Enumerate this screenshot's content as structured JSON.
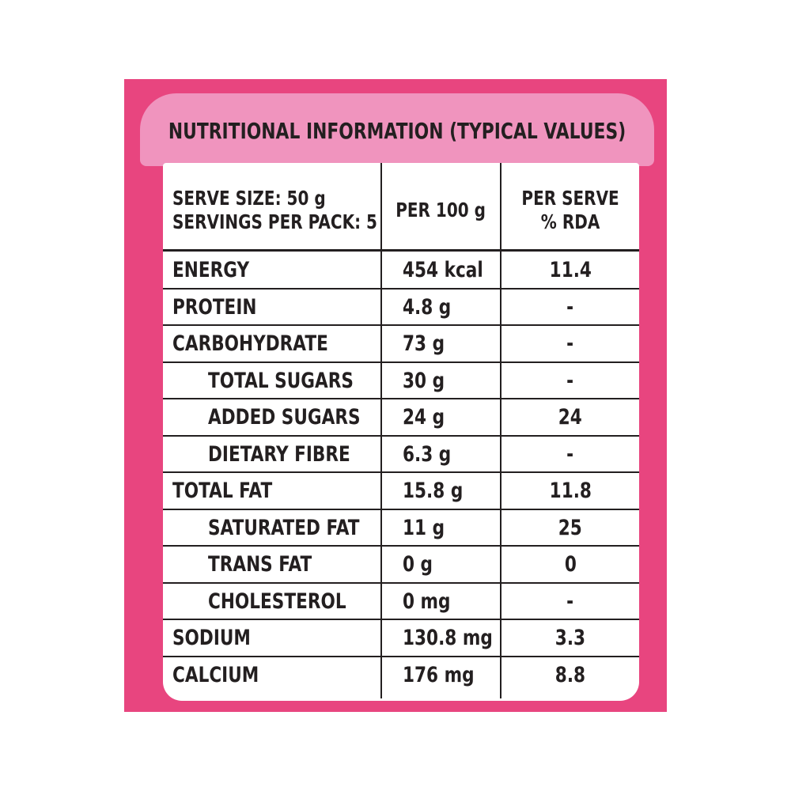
{
  "title": "NUTRITIONAL INFORMATION (TYPICAL VALUES)",
  "header": {
    "serve_line1": "SERVE SIZE: 50 g",
    "serve_line2": "SERVINGS PER PACK: 5",
    "per100": "PER 100 g",
    "rda_line1": "PER SERVE",
    "rda_line2": "% RDA"
  },
  "rows": [
    {
      "name": "ENERGY",
      "per100": "454 kcal",
      "rda": "11.4"
    },
    {
      "name": "PROTEIN",
      "per100": "4.8 g",
      "rda": "-"
    },
    {
      "name": "CARBOHYDRATE",
      "per100": "73 g",
      "rda": "-"
    },
    {
      "name": "TOTAL SUGARS",
      "per100": "30 g",
      "rda": "-"
    },
    {
      "name": "ADDED SUGARS",
      "per100": "24 g",
      "rda": "24"
    },
    {
      "name": "DIETARY FIBRE",
      "per100": "6.3 g",
      "rda": "-"
    },
    {
      "name": "TOTAL FAT",
      "per100": "15.8 g",
      "rda": "11.8"
    },
    {
      "name": "SATURATED FAT",
      "per100": "11 g",
      "rda": "25"
    },
    {
      "name": "TRANS FAT",
      "per100": "0 g",
      "rda": "0"
    },
    {
      "name": "CHOLESTEROL",
      "per100": "0 mg",
      "rda": "-"
    },
    {
      "name": "SODIUM",
      "per100": "130.8 mg",
      "rda": "3.3"
    },
    {
      "name": "CALCIUM",
      "per100": "176 mg",
      "rda": "8.8"
    }
  ],
  "colors": {
    "panel": "#e8457f",
    "band": "#f094be",
    "text": "#231f20"
  }
}
